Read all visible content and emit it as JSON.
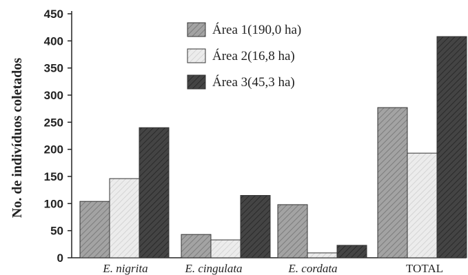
{
  "chart_data": {
    "type": "bar",
    "title": "",
    "ylabel": "No. de indivíduos coletados",
    "xlabel": "",
    "ylim": [
      0,
      450
    ],
    "yticks": [
      0,
      50,
      100,
      150,
      200,
      250,
      300,
      350,
      400,
      450
    ],
    "categories": [
      "E. nigrita",
      "E. cingulata",
      "E. cordata",
      "TOTAL"
    ],
    "categories_italic": [
      true,
      true,
      true,
      false
    ],
    "series": [
      {
        "name": "Área 1(190,0 ha)",
        "values": [
          104,
          43,
          98,
          277
        ],
        "color": "#9a9a9a",
        "pattern": "hatch-medium"
      },
      {
        "name": "Área 2(16,8 ha)",
        "values": [
          146,
          33,
          9,
          193
        ],
        "color": "#e6e6e6",
        "pattern": "hatch-light"
      },
      {
        "name": "Área 3(45,3 ha)",
        "values": [
          240,
          115,
          23,
          408
        ],
        "color": "#3a3a3a",
        "pattern": "hatch-dark"
      }
    ],
    "grid": false,
    "legend_position": "top-center"
  }
}
